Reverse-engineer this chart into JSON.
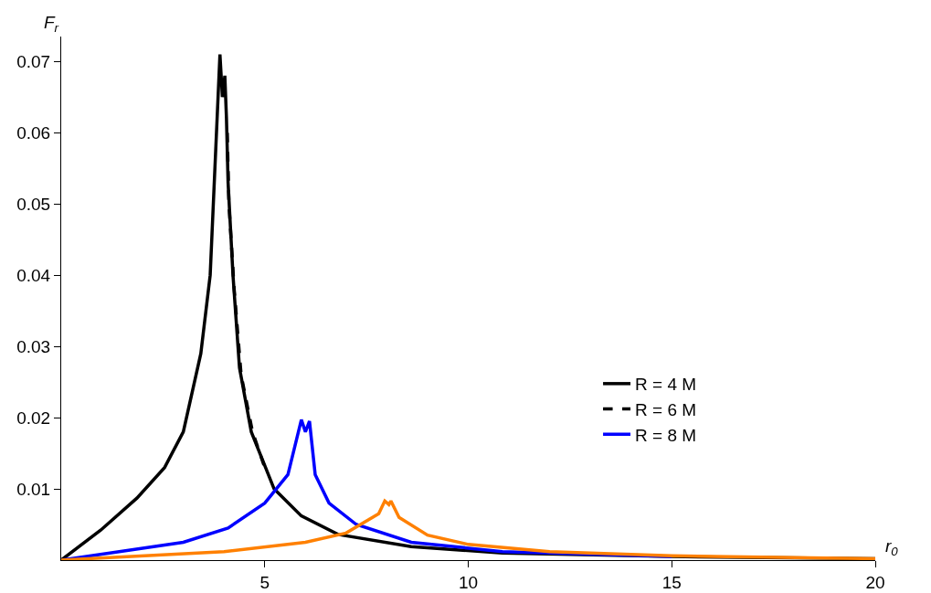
{
  "chart_data": {
    "type": "line",
    "xlabel": "r$_{0}$",
    "ylabel": "F$_{r}$",
    "xlim": [
      0,
      20
    ],
    "ylim": [
      0,
      0.0735
    ],
    "xticks": [
      5,
      10,
      15,
      20
    ],
    "yticks": [
      0.01,
      0.02,
      0.03,
      0.04,
      0.05,
      0.06,
      0.07
    ],
    "grid": false,
    "legend": "right",
    "marker": "none",
    "series": [
      {
        "name": "R = 4 M",
        "color": "#000000",
        "line_style": "solid",
        "x": [
          0,
          0.97,
          1.86,
          2.54,
          3,
          3.43,
          3.66,
          3.9,
          3.96,
          4.02,
          4.06,
          4.1,
          4.22,
          4.38,
          4.67,
          5.23,
          5.9,
          6.8,
          8.6,
          10.84,
          15,
          20
        ],
        "values": [
          0,
          0.0042,
          0.0087,
          0.013,
          0.018,
          0.029,
          0.04,
          0.071,
          0.065,
          0.068,
          0.062,
          0.053,
          0.04,
          0.027,
          0.018,
          0.01,
          0.0062,
          0.0036,
          0.0019,
          0.001,
          0.0005,
          0.0002
        ]
      },
      {
        "name": "R = 6 M",
        "color": "#000000",
        "line_style": "dashed",
        "x": [
          4.08,
          4.12,
          4.25,
          4.42,
          4.7,
          5.0
        ],
        "values": [
          0.06,
          0.05,
          0.038,
          0.026,
          0.018,
          0.013
        ]
      },
      {
        "name": "R = 8 M",
        "color": "#0000ff",
        "line_style": "solid",
        "x": [
          0,
          3,
          4.1,
          5,
          5.57,
          5.9,
          6.0,
          6.1,
          6.24,
          6.58,
          7.25,
          8.6,
          10.84,
          15
        ],
        "values": [
          0,
          0.0025,
          0.0045,
          0.008,
          0.012,
          0.0197,
          0.018,
          0.0195,
          0.012,
          0.008,
          0.005,
          0.0025,
          0.0012,
          0.0005
        ]
      },
      {
        "color": "#ff8000",
        "line_style": "solid",
        "x": [
          0,
          4,
          6,
          7,
          7.8,
          7.95,
          8.05,
          8.1,
          8.3,
          9,
          10,
          12,
          15,
          20
        ],
        "values": [
          0,
          0.0012,
          0.0025,
          0.0038,
          0.0065,
          0.0083,
          0.0078,
          0.0083,
          0.006,
          0.0035,
          0.0022,
          0.0012,
          0.0006,
          0.0002
        ]
      }
    ]
  }
}
